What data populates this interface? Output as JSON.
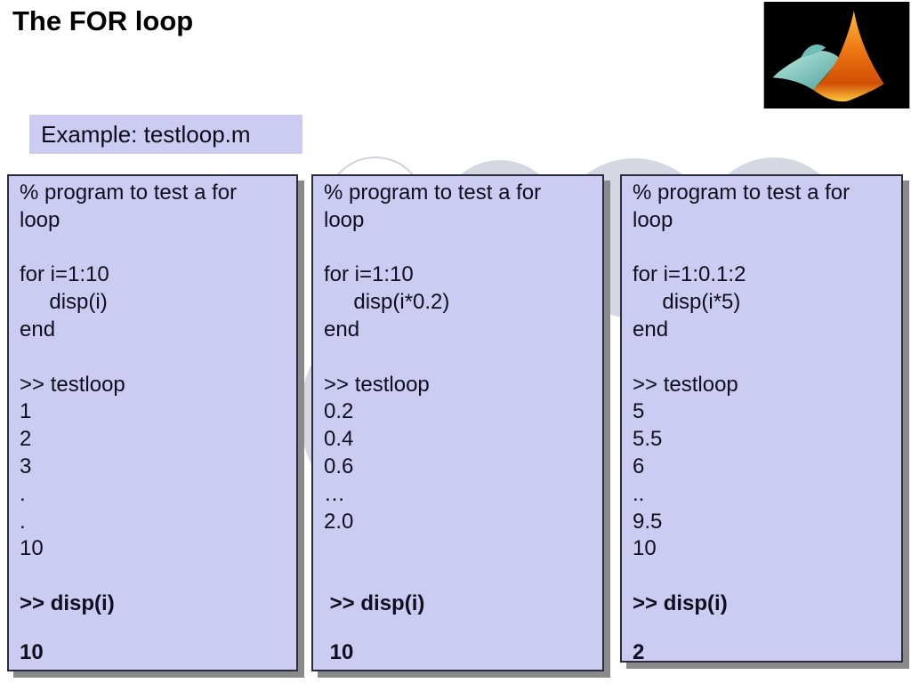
{
  "slide": {
    "title": "The FOR loop",
    "example_label": "Example: testloop.m"
  },
  "colors": {
    "box_fill": "#ccccf2",
    "box_border": "#2b2b3d",
    "shadow_gray": "#8a8a8a",
    "circle_fill": "#d7d7e3",
    "ring_stroke": "#d2d2dc",
    "logo_black": "#000000",
    "logo_orange": "#ee7512",
    "logo_orange_light": "#ffb83d",
    "logo_teal": "#8fd8cc",
    "text_dark": "#0e0e20"
  },
  "logo": {
    "name": "matlab-logo"
  },
  "boxes": [
    {
      "name": "code-box-1",
      "lines": [
        {
          "t": "% program to test a for"
        },
        {
          "t": "loop"
        },
        {
          "t": ""
        },
        {
          "t": "for i=1:10"
        },
        {
          "t": "     disp(i)"
        },
        {
          "t": "end"
        },
        {
          "t": ""
        },
        {
          "t": ">> testloop"
        },
        {
          "t": "1"
        },
        {
          "t": "2"
        },
        {
          "t": "3"
        },
        {
          "t": "."
        },
        {
          "t": "."
        },
        {
          "t": "10"
        },
        {
          "t": ""
        },
        {
          "t": ">> disp(i)",
          "b": true
        },
        {
          "gap": true
        },
        {
          "t": "10",
          "b": true
        }
      ]
    },
    {
      "name": "code-box-2",
      "lines": [
        {
          "t": "% program to test a for"
        },
        {
          "t": "loop"
        },
        {
          "t": ""
        },
        {
          "t": "for i=1:10"
        },
        {
          "t": "     disp(i*0.2)"
        },
        {
          "t": "end"
        },
        {
          "t": ""
        },
        {
          "t": ">> testloop"
        },
        {
          "t": "0.2"
        },
        {
          "t": "0.4"
        },
        {
          "t": "0.6"
        },
        {
          "t": "…"
        },
        {
          "t": "2.0"
        },
        {
          "t": ""
        },
        {
          "t": ""
        },
        {
          "t": " >> disp(i)",
          "b": true
        },
        {
          "gap": true
        },
        {
          "t": " 10",
          "b": true
        }
      ]
    },
    {
      "name": "code-box-3",
      "lines": [
        {
          "t": "% program to test a for"
        },
        {
          "t": "loop"
        },
        {
          "t": ""
        },
        {
          "t": "for i=1:0.1:2"
        },
        {
          "t": "     disp(i*5)"
        },
        {
          "t": "end"
        },
        {
          "t": ""
        },
        {
          "t": ">> testloop"
        },
        {
          "t": "5"
        },
        {
          "t": "5.5"
        },
        {
          "t": "6"
        },
        {
          "t": ".."
        },
        {
          "t": "9.5"
        },
        {
          "t": "10"
        },
        {
          "t": ""
        },
        {
          "t": ">> disp(i)",
          "b": true
        },
        {
          "gap": true
        },
        {
          "t": "2",
          "b": true
        }
      ]
    }
  ]
}
